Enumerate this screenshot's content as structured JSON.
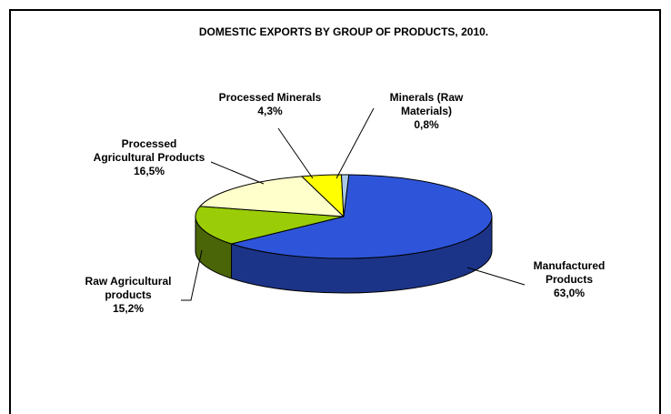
{
  "chart_data": {
    "type": "pie",
    "title": "DOMESTIC EXPORTS BY GROUP OF PRODUCTS, 2010.",
    "slices": [
      {
        "name": "Manufactured Products",
        "value": 63.0,
        "label_lines": [
          "Manufactured",
          "Products"
        ],
        "pct_label": "63,0%",
        "color": "#2E55D9",
        "side_color": "#1C3488"
      },
      {
        "name": "Raw Agricultural products",
        "value": 15.2,
        "label_lines": [
          "Raw Agricultural",
          "products"
        ],
        "pct_label": "15,2%",
        "color": "#9ACD07",
        "side_color": "#4A6408"
      },
      {
        "name": "Processed Agricultural Products",
        "value": 16.5,
        "label_lines": [
          "Processed",
          "Agricultural Products"
        ],
        "pct_label": "16,5%",
        "color": "#FFFFCC",
        "side_color": "#CCCC99"
      },
      {
        "name": "Processed Minerals",
        "value": 4.3,
        "label_lines": [
          "Processed Minerals"
        ],
        "pct_label": "4,3%",
        "color": "#FFFF00",
        "side_color": "#999900"
      },
      {
        "name": "Minerals (Raw Materials)",
        "value": 0.8,
        "label_lines": [
          "Minerals (Raw",
          "Materials)"
        ],
        "pct_label": "0,8%",
        "color": "#A8C8E8",
        "side_color": "#6A8AAA"
      }
    ]
  }
}
